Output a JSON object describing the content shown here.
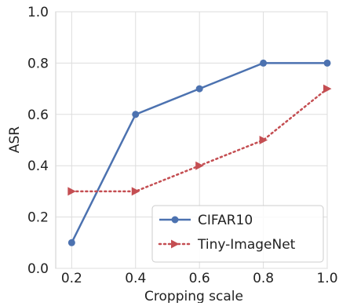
{
  "chart_data": {
    "type": "line",
    "title": "",
    "xlabel": "Cropping scale",
    "ylabel": "ASR",
    "x": [
      0.2,
      0.4,
      0.6,
      0.8,
      1.0
    ],
    "xticks": [
      "0.2",
      "0.4",
      "0.6",
      "0.8",
      "1.0"
    ],
    "yticks": [
      "0.0",
      "0.2",
      "0.4",
      "0.6",
      "0.8",
      "1.0"
    ],
    "xlim": [
      0.15,
      1.0
    ],
    "ylim": [
      0.0,
      1.0
    ],
    "grid": true,
    "legend_position": "bottom-right",
    "series": [
      {
        "name": "CIFAR10",
        "values": [
          0.1,
          0.6,
          0.7,
          0.8,
          0.8
        ],
        "color": "#4c72b0",
        "line_style": "solid",
        "marker": "circle"
      },
      {
        "name": "Tiny-ImageNet",
        "values": [
          0.3,
          0.3,
          0.4,
          0.5,
          0.7
        ],
        "color": "#c44e52",
        "line_style": "dotted",
        "marker": "triangle-right"
      }
    ]
  }
}
